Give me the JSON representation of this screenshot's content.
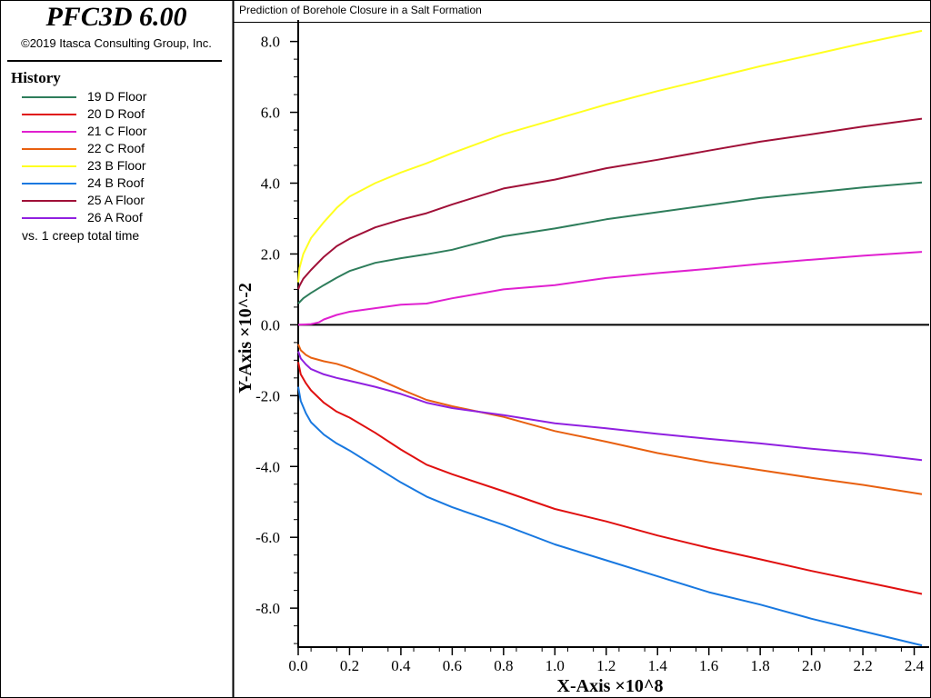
{
  "header": {
    "app_title": "PFC3D 6.00",
    "copyright": "©2019 Itasca Consulting Group, Inc."
  },
  "history": {
    "heading": "History",
    "vs_label": "vs. 1 creep total time"
  },
  "chart_data": {
    "type": "line",
    "title": "Prediction of Borehole Closure in a Salt Formation",
    "xlabel": "X-Axis ×10^8",
    "ylabel": "Y-Axis ×10^-2",
    "xlim": [
      0,
      2.43
    ],
    "ylim": [
      -9.1,
      8.35
    ],
    "xticks": [
      0.0,
      0.2,
      0.4,
      0.6,
      0.8,
      1.0,
      1.2,
      1.4,
      1.6,
      1.8,
      2.0,
      2.2,
      2.4
    ],
    "xtick_labels": [
      "0.0",
      "0.2",
      "0.4",
      "0.6",
      "0.8",
      "1.0",
      "1.2",
      "1.4",
      "1.6",
      "1.8",
      "2.0",
      "2.2",
      "2.4"
    ],
    "yticks": [
      -8.0,
      -6.0,
      -4.0,
      -2.0,
      0.0,
      2.0,
      4.0,
      6.0,
      8.0
    ],
    "ytick_labels": [
      "-8.0",
      "-6.0",
      "-4.0",
      "-2.0",
      "0.0",
      "2.0",
      "4.0",
      "6.0",
      "8.0"
    ],
    "grid": false,
    "legend_position": "left-sidebar",
    "series": [
      {
        "name": "19 D Floor",
        "color": "#2e7d5b",
        "x": [
          0,
          0.02,
          0.05,
          0.1,
          0.15,
          0.2,
          0.3,
          0.4,
          0.5,
          0.6,
          0.8,
          1.0,
          1.2,
          1.4,
          1.6,
          1.8,
          2.0,
          2.2,
          2.43
        ],
        "y": [
          0.6,
          0.75,
          0.9,
          1.12,
          1.33,
          1.52,
          1.75,
          1.88,
          1.99,
          2.12,
          2.5,
          2.72,
          2.98,
          3.18,
          3.38,
          3.58,
          3.73,
          3.88,
          4.02
        ]
      },
      {
        "name": "20 D Roof",
        "color": "#e01010",
        "x": [
          0,
          0.01,
          0.03,
          0.05,
          0.1,
          0.15,
          0.2,
          0.3,
          0.4,
          0.5,
          0.6,
          0.8,
          1.0,
          1.2,
          1.4,
          1.6,
          1.8,
          2.0,
          2.2,
          2.43
        ],
        "y": [
          -1.05,
          -1.4,
          -1.65,
          -1.85,
          -2.2,
          -2.45,
          -2.62,
          -3.05,
          -3.52,
          -3.95,
          -4.22,
          -4.7,
          -5.2,
          -5.55,
          -5.95,
          -6.3,
          -6.62,
          -6.95,
          -7.25,
          -7.6
        ]
      },
      {
        "name": "21 C Floor",
        "color": "#e020d0",
        "x": [
          0,
          0.05,
          0.08,
          0.1,
          0.15,
          0.2,
          0.3,
          0.4,
          0.5,
          0.6,
          0.8,
          1.0,
          1.2,
          1.4,
          1.6,
          1.8,
          2.0,
          2.2,
          2.43
        ],
        "y": [
          0.0,
          0.02,
          0.07,
          0.15,
          0.28,
          0.37,
          0.47,
          0.57,
          0.6,
          0.75,
          1.0,
          1.12,
          1.32,
          1.46,
          1.58,
          1.72,
          1.84,
          1.95,
          2.06
        ]
      },
      {
        "name": "22 C Roof",
        "color": "#e86010",
        "x": [
          0,
          0.01,
          0.03,
          0.05,
          0.1,
          0.15,
          0.2,
          0.3,
          0.4,
          0.5,
          0.6,
          0.8,
          1.0,
          1.2,
          1.4,
          1.6,
          1.8,
          2.0,
          2.2,
          2.43
        ],
        "y": [
          -0.55,
          -0.72,
          -0.85,
          -0.93,
          -1.03,
          -1.1,
          -1.22,
          -1.5,
          -1.82,
          -2.12,
          -2.3,
          -2.6,
          -3.0,
          -3.3,
          -3.62,
          -3.88,
          -4.1,
          -4.32,
          -4.52,
          -4.78
        ]
      },
      {
        "name": "23 B Floor",
        "color": "#ffff20",
        "x": [
          0,
          0.005,
          0.02,
          0.05,
          0.1,
          0.15,
          0.2,
          0.3,
          0.4,
          0.5,
          0.6,
          0.8,
          1.0,
          1.2,
          1.4,
          1.6,
          1.8,
          2.0,
          2.2,
          2.43
        ],
        "y": [
          1.2,
          1.6,
          2.0,
          2.45,
          2.9,
          3.3,
          3.62,
          4.0,
          4.3,
          4.56,
          4.85,
          5.38,
          5.8,
          6.22,
          6.6,
          6.95,
          7.3,
          7.62,
          7.95,
          8.3
        ]
      },
      {
        "name": "24 B Roof",
        "color": "#1878e0",
        "x": [
          0,
          0.01,
          0.03,
          0.05,
          0.1,
          0.15,
          0.2,
          0.3,
          0.4,
          0.5,
          0.6,
          0.8,
          1.0,
          1.2,
          1.4,
          1.6,
          1.8,
          2.0,
          2.2,
          2.43
        ],
        "y": [
          -1.75,
          -2.15,
          -2.5,
          -2.75,
          -3.1,
          -3.35,
          -3.55,
          -4.0,
          -4.45,
          -4.85,
          -5.15,
          -5.65,
          -6.2,
          -6.65,
          -7.1,
          -7.55,
          -7.9,
          -8.3,
          -8.65,
          -9.05
        ]
      },
      {
        "name": "25 A Floor",
        "color": "#a01038",
        "x": [
          0,
          0.005,
          0.02,
          0.05,
          0.1,
          0.15,
          0.2,
          0.3,
          0.4,
          0.5,
          0.6,
          0.8,
          1.0,
          1.2,
          1.4,
          1.6,
          1.8,
          2.0,
          2.2,
          2.43
        ],
        "y": [
          1.0,
          1.1,
          1.3,
          1.55,
          1.92,
          2.22,
          2.43,
          2.75,
          2.97,
          3.15,
          3.4,
          3.85,
          4.1,
          4.42,
          4.66,
          4.92,
          5.17,
          5.38,
          5.6,
          5.82
        ]
      },
      {
        "name": "26 A Roof",
        "color": "#9020e0",
        "x": [
          0,
          0.01,
          0.03,
          0.05,
          0.1,
          0.15,
          0.2,
          0.3,
          0.4,
          0.5,
          0.6,
          0.8,
          1.0,
          1.2,
          1.4,
          1.6,
          1.8,
          2.0,
          2.2,
          2.43
        ],
        "y": [
          -0.75,
          -0.95,
          -1.12,
          -1.25,
          -1.4,
          -1.5,
          -1.58,
          -1.75,
          -1.95,
          -2.2,
          -2.35,
          -2.55,
          -2.78,
          -2.92,
          -3.08,
          -3.22,
          -3.35,
          -3.5,
          -3.63,
          -3.82
        ]
      }
    ]
  }
}
